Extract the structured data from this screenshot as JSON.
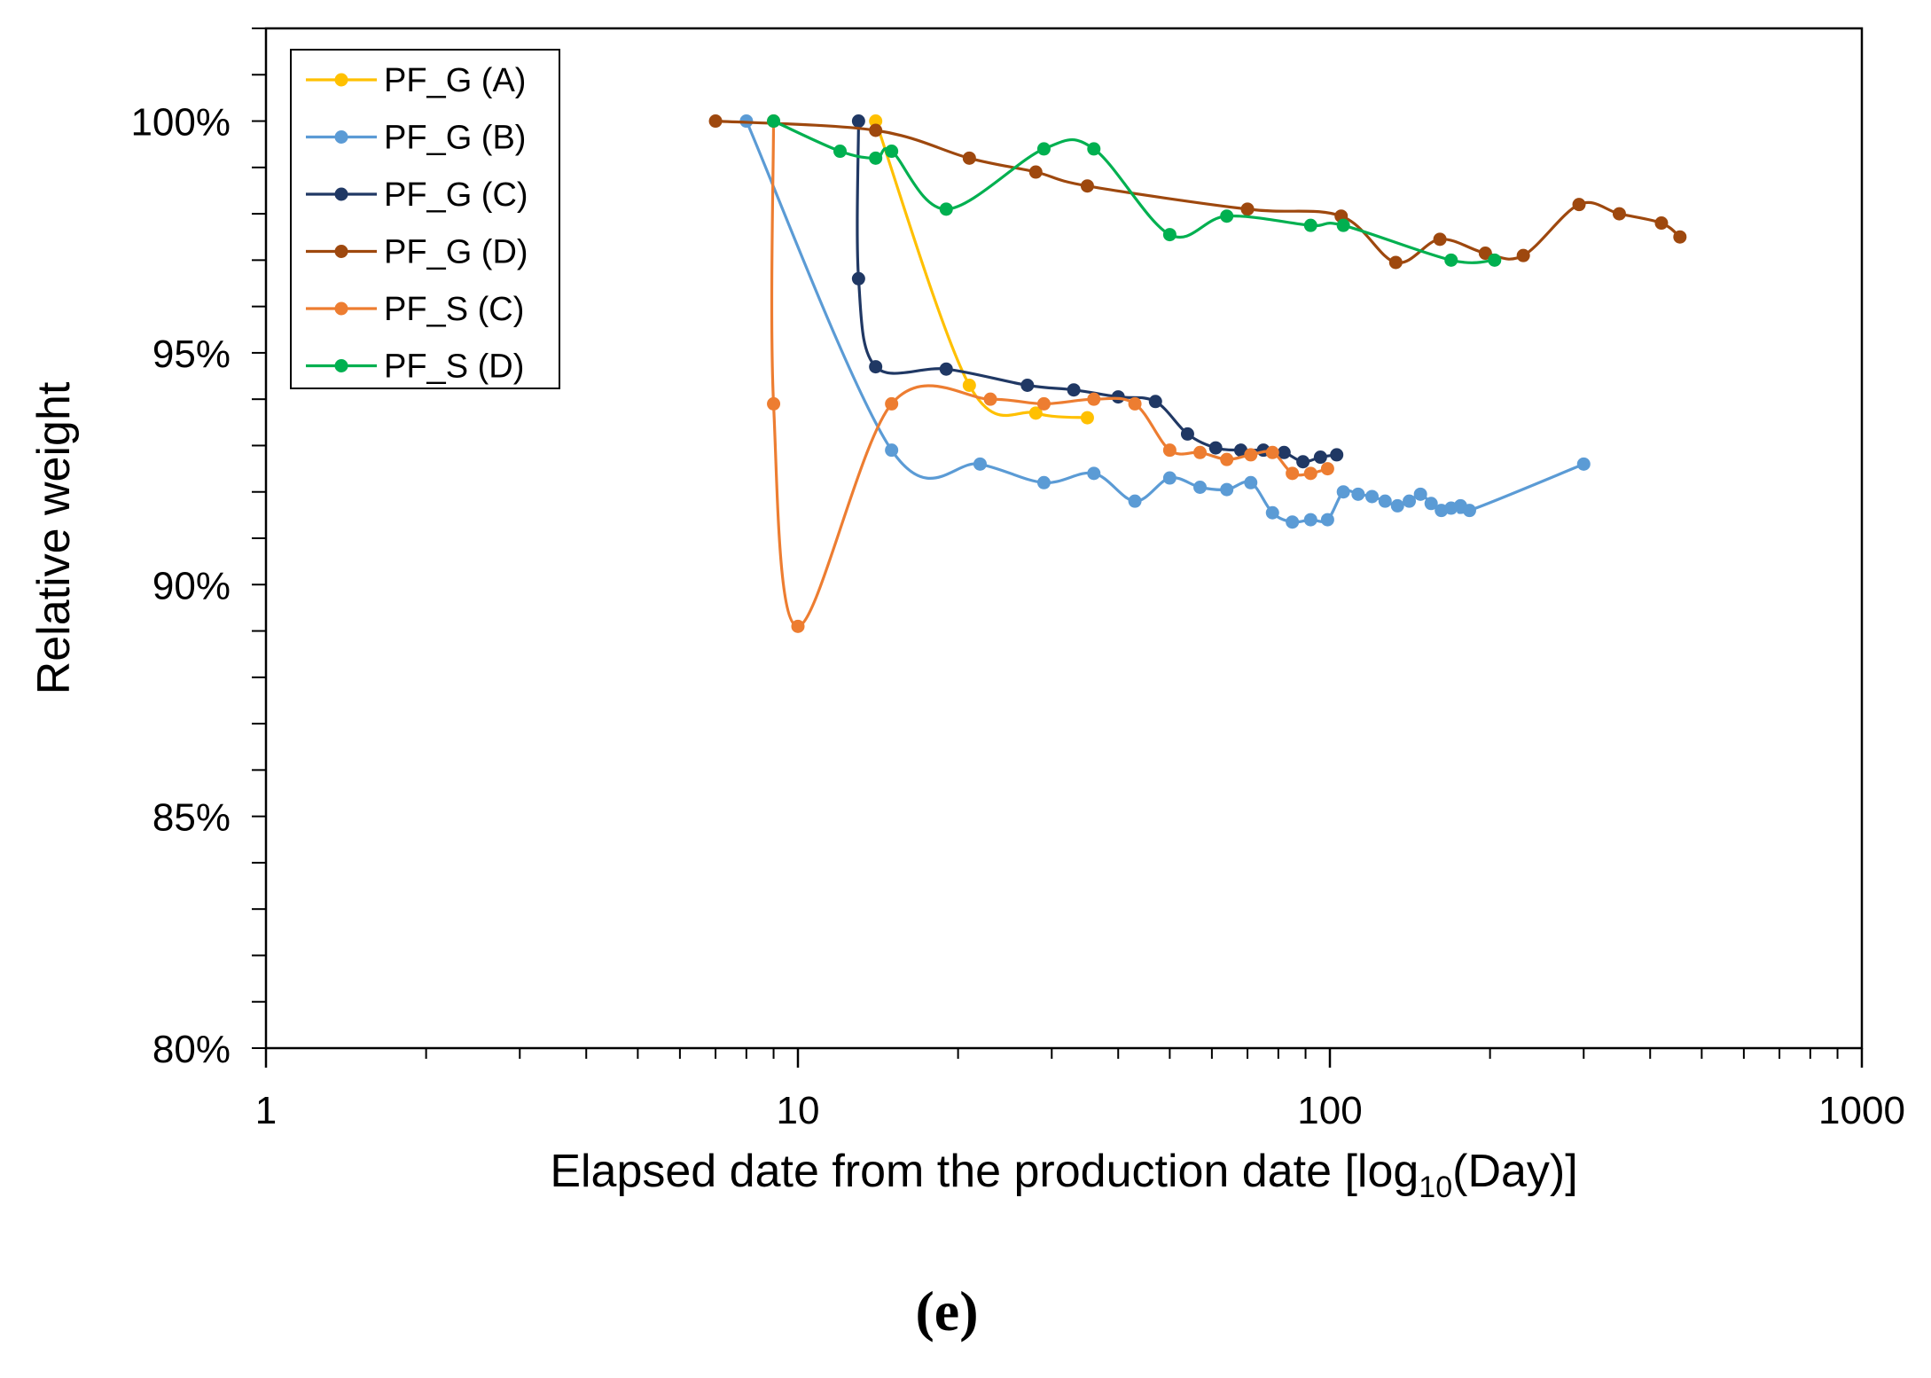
{
  "chart_data": {
    "type": "line",
    "xlabel": "Elapsed date from the production date [log",
    "xlabel_sub": "10",
    "xlabel_end": "(Day)]",
    "ylabel": "Relative weight",
    "caption": "(e)",
    "x_scale": "log",
    "xlim": [
      1,
      1000
    ],
    "ylim": [
      80,
      102
    ],
    "x_ticks": [
      1,
      10,
      100,
      1000
    ],
    "x_tick_labels": [
      "1",
      "10",
      "100",
      "1000"
    ],
    "y_ticks": [
      80,
      85,
      90,
      95,
      100
    ],
    "y_tick_labels": [
      "80%",
      "85%",
      "90%",
      "95%",
      "100%"
    ],
    "legend_position": "top-left",
    "series": [
      {
        "name": "PF_G (A)",
        "color": "#FFC000",
        "x": [
          14,
          21,
          28,
          35
        ],
        "y": [
          100,
          94.3,
          93.7,
          93.6
        ]
      },
      {
        "name": "PF_G (B)",
        "color": "#5B9BD5",
        "x": [
          8,
          15,
          22,
          29,
          36,
          43,
          50,
          57,
          64,
          71,
          78,
          85,
          92,
          99,
          106,
          113,
          120,
          127,
          134,
          141,
          148,
          155,
          162,
          169,
          176,
          183,
          300
        ],
        "y": [
          100,
          92.9,
          92.6,
          92.2,
          92.4,
          91.8,
          92.3,
          92.1,
          92.05,
          92.2,
          91.55,
          91.35,
          91.4,
          91.4,
          92.0,
          91.95,
          91.9,
          91.8,
          91.7,
          91.8,
          91.95,
          91.75,
          91.6,
          91.65,
          91.7,
          91.6,
          92.6
        ]
      },
      {
        "name": "PF_G (C)",
        "color": "#203864",
        "x": [
          13,
          13,
          14,
          19,
          27,
          33,
          40,
          47,
          54,
          61,
          68,
          75,
          82,
          89,
          96,
          103
        ],
        "y": [
          100,
          96.6,
          94.7,
          94.65,
          94.3,
          94.2,
          94.05,
          93.95,
          93.25,
          92.95,
          92.9,
          92.9,
          92.85,
          92.65,
          92.75,
          92.8
        ]
      },
      {
        "name": "PF_G (D)",
        "color": "#9E480E",
        "x": [
          7,
          14,
          21,
          28,
          35,
          70,
          105,
          133,
          161,
          196,
          231,
          294,
          350,
          420,
          455
        ],
        "y": [
          100,
          99.8,
          99.2,
          98.9,
          98.6,
          98.1,
          97.95,
          96.95,
          97.45,
          97.15,
          97.1,
          98.2,
          98.0,
          97.8,
          97.5
        ]
      },
      {
        "name": "PF_S (C)",
        "color": "#ED7D31",
        "x": [
          9,
          9,
          10,
          15,
          23,
          29,
          36,
          43,
          50,
          57,
          64,
          71,
          78,
          85,
          92,
          99
        ],
        "y": [
          100,
          93.9,
          89.1,
          93.9,
          94.0,
          93.9,
          94.0,
          93.9,
          92.9,
          92.85,
          92.7,
          92.8,
          92.85,
          92.4,
          92.4,
          92.5
        ]
      },
      {
        "name": "PF_S (D)",
        "color": "#00B050",
        "x": [
          9,
          12,
          14,
          15,
          19,
          29,
          36,
          50,
          64,
          92,
          106,
          169,
          204
        ],
        "y": [
          100,
          99.35,
          99.2,
          99.35,
          98.1,
          99.4,
          99.4,
          97.55,
          97.95,
          97.75,
          97.75,
          97.0,
          97.0
        ]
      }
    ]
  }
}
